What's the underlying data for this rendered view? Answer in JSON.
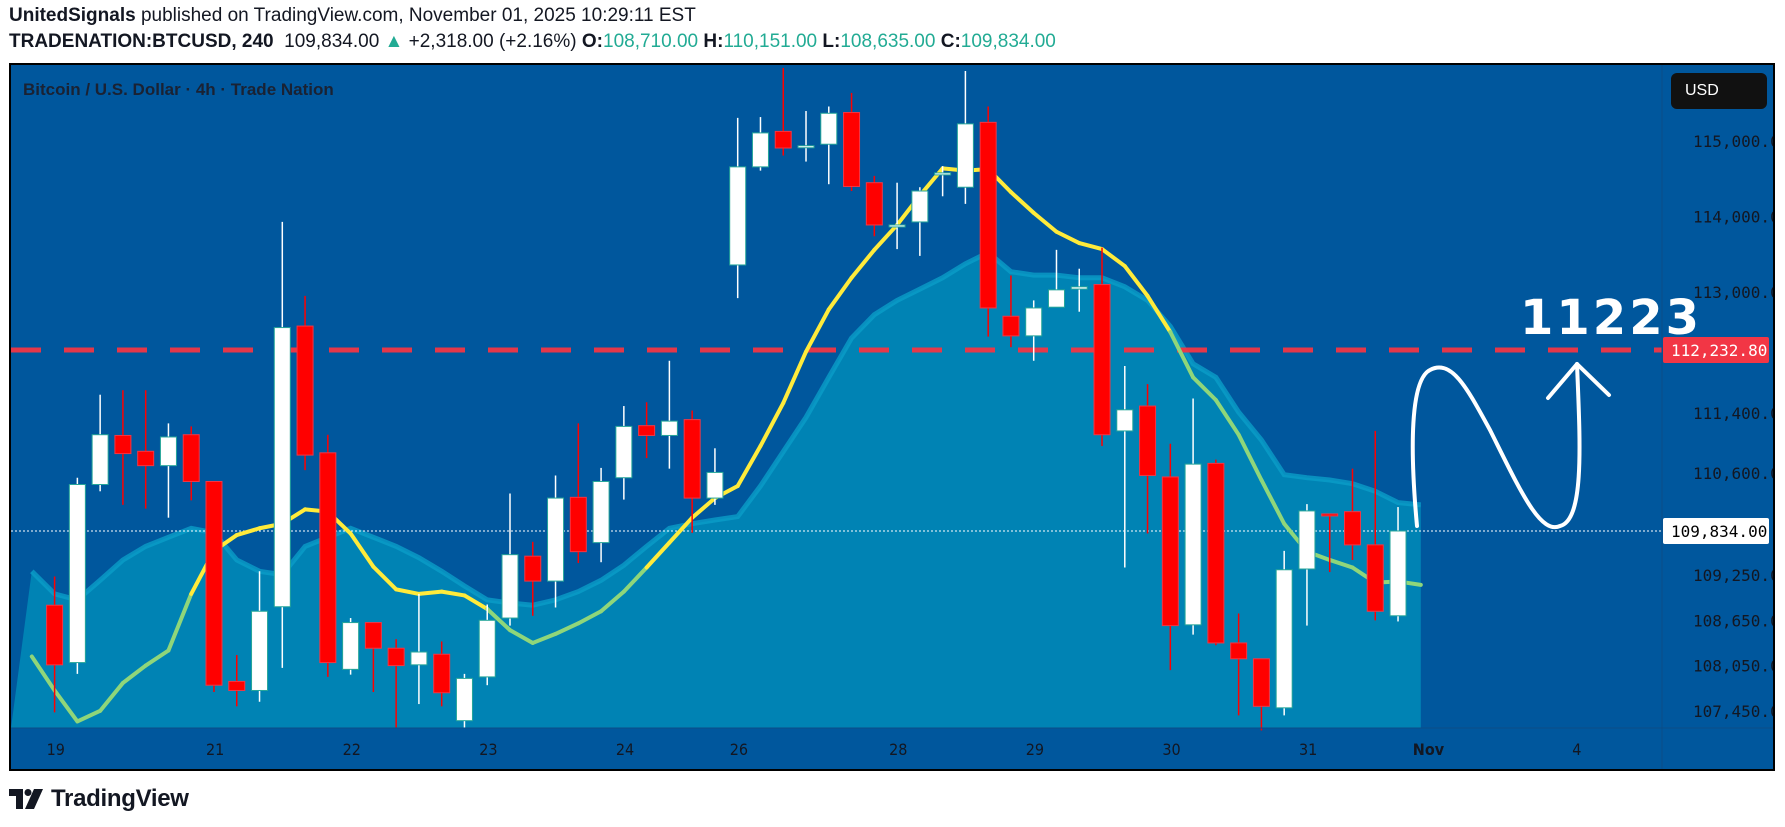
{
  "header": {
    "author": "UnitedSignals",
    "published_text": " published on TradingView.com, November 01, 2025 10:29:11 EST",
    "symbol": "TRADENATION:BTCUSD, 240",
    "last_price": "109,834.00",
    "change_arrow": "▲",
    "change": "+2,318.00 (+2.16%)",
    "o_label": "O:",
    "o_value": "108,710.00",
    "h_label": "H:",
    "h_value": "110,151.00",
    "l_label": "L:",
    "l_value": "108,635.00",
    "c_label": "C:",
    "c_value": "109,834.00"
  },
  "chart": {
    "legend_title": "Bitcoin / U.S. Dollar · 4h · Trade Nation",
    "currency_button": "USD",
    "annotation_text": "11223",
    "horizontal_line_label": "112,232.80",
    "last_price_label": "109,834.00"
  },
  "colors": {
    "background": "#00579d",
    "area_fill": "#0083b4",
    "area_line": "#0a9ec8",
    "ma_yellow": "#ffeb3b",
    "ma_green": "#8fd67a",
    "up_body": "#ffffff",
    "up_border": "#26a69a",
    "down_body": "#ff0000",
    "down_border": "#f23645",
    "hline": "#f23645",
    "axis_text": "#131722"
  },
  "footer": {
    "brand": "TradingView"
  },
  "chart_data": {
    "type": "candlestick",
    "title": "Bitcoin / U.S. Dollar · 4h · Trade Nation",
    "symbol": "TRADENATION:BTCUSD",
    "interval": "240",
    "ylabel": "USD",
    "ylim": [
      107000,
      116100
    ],
    "y_ticks": [
      115000,
      114000,
      113000,
      111400,
      110600,
      109250,
      108650,
      108050,
      107450
    ],
    "y_tick_labels": [
      "115,000.00",
      "114,000.00",
      "113,000.00",
      "111,400.00",
      "110,600.00",
      "109,250.00",
      "108,650.00",
      "108,050.00",
      "107,450.00"
    ],
    "x_ticks": [
      {
        "label": "19",
        "index": 0
      },
      {
        "label": "21",
        "index": 7
      },
      {
        "label": "22",
        "index": 13
      },
      {
        "label": "23",
        "index": 19
      },
      {
        "label": "24",
        "index": 25
      },
      {
        "label": "26",
        "index": 30
      },
      {
        "label": "28",
        "index": 37
      },
      {
        "label": "29",
        "index": 43
      },
      {
        "label": "30",
        "index": 49
      },
      {
        "label": "31",
        "index": 55
      },
      {
        "label": "Nov",
        "index": 60
      },
      {
        "label": "4",
        "index": 67
      }
    ],
    "horizontal_level": 112232.8,
    "last_price": 109834.0,
    "ohlc": [
      [
        108850,
        109230,
        107430,
        108060
      ],
      [
        108090,
        110540,
        107940,
        110450
      ],
      [
        110450,
        111640,
        110360,
        111110
      ],
      [
        111100,
        111700,
        110180,
        110860
      ],
      [
        110890,
        111700,
        110130,
        110700
      ],
      [
        110700,
        111260,
        110010,
        111080
      ],
      [
        111110,
        111220,
        110240,
        110490
      ],
      [
        110490,
        110490,
        107700,
        107790
      ],
      [
        107840,
        108190,
        107510,
        107720
      ],
      [
        107720,
        109300,
        107570,
        108770
      ],
      [
        108830,
        113930,
        108020,
        112530
      ],
      [
        112550,
        112950,
        110640,
        110840
      ],
      [
        110870,
        111110,
        107900,
        108090
      ],
      [
        108000,
        108680,
        107930,
        108620
      ],
      [
        108620,
        108620,
        107700,
        108280
      ],
      [
        108280,
        108400,
        107230,
        108050
      ],
      [
        108060,
        109000,
        107540,
        108230
      ],
      [
        108200,
        108370,
        107510,
        107690
      ],
      [
        107320,
        107940,
        107230,
        107880
      ],
      [
        107900,
        108860,
        107790,
        108650
      ],
      [
        108680,
        110330,
        108580,
        109520
      ],
      [
        109500,
        109690,
        108710,
        109170
      ],
      [
        109170,
        110570,
        108820,
        110270
      ],
      [
        110280,
        111260,
        109410,
        109560
      ],
      [
        109680,
        110670,
        109420,
        110490
      ],
      [
        110540,
        111490,
        110250,
        111220
      ],
      [
        111230,
        111540,
        110800,
        111100
      ],
      [
        111100,
        112090,
        110660,
        111290
      ],
      [
        111310,
        111430,
        109810,
        110270
      ],
      [
        110270,
        110930,
        110180,
        110610
      ],
      [
        113360,
        115310,
        112920,
        114660
      ],
      [
        114660,
        115320,
        114610,
        115110
      ],
      [
        115130,
        115970,
        114810,
        114910
      ],
      [
        114930,
        115400,
        114730,
        114940
      ],
      [
        114960,
        115460,
        114430,
        115370
      ],
      [
        115380,
        115640,
        114340,
        114400
      ],
      [
        114450,
        114540,
        113740,
        113890
      ],
      [
        113890,
        114450,
        113570,
        113890
      ],
      [
        113930,
        114390,
        113480,
        114340
      ],
      [
        114570,
        114670,
        114270,
        114580
      ],
      [
        114390,
        115930,
        114170,
        115230
      ],
      [
        115250,
        115460,
        112410,
        112790
      ],
      [
        112680,
        113220,
        112270,
        112420
      ],
      [
        112420,
        112890,
        112090,
        112790
      ],
      [
        112800,
        113560,
        112800,
        113030
      ],
      [
        113040,
        113310,
        112740,
        113070
      ],
      [
        113100,
        113590,
        110960,
        111110
      ],
      [
        111160,
        112020,
        109350,
        111440
      ],
      [
        111490,
        111780,
        109800,
        110570
      ],
      [
        110550,
        110990,
        107990,
        108580
      ],
      [
        108590,
        111590,
        108460,
        110720
      ],
      [
        110730,
        110780,
        108320,
        108350
      ],
      [
        108350,
        108740,
        107390,
        108140
      ],
      [
        108140,
        108140,
        107190,
        107510
      ],
      [
        107490,
        109570,
        107390,
        109320
      ],
      [
        109330,
        110190,
        108580,
        110100
      ],
      [
        110060,
        110060,
        109290,
        110040
      ],
      [
        110090,
        110660,
        109450,
        109650
      ],
      [
        109650,
        111160,
        108650,
        108770
      ],
      [
        108710,
        110151,
        108635,
        109834
      ]
    ],
    "series": [
      {
        "name": "Moving average (line)",
        "values": [
          108170,
          107720,
          107310,
          107450,
          107820,
          108050,
          108250,
          109000,
          109570,
          109780,
          109870,
          109930,
          110120,
          110090,
          109800,
          109360,
          109060,
          109000,
          109030,
          108980,
          108800,
          108520,
          108350,
          108470,
          108610,
          108770,
          109030,
          109350,
          109680,
          110010,
          110270,
          110430,
          110960,
          111530,
          112210,
          112770,
          113190,
          113560,
          113890,
          114280,
          114640,
          114610,
          114630,
          114325,
          114050,
          113800,
          113650,
          113570,
          113345,
          112950,
          112470,
          111870,
          111570,
          111110,
          110510,
          109930,
          109560,
          109450,
          109350,
          109150,
          109165,
          109120
        ],
        "start_index": -1,
        "segment_colors": "green 0-7, yellow 7-20, green 20-27, yellow 27-50, green 50-61"
      },
      {
        "name": "Moving average (area)",
        "values": [
          109300,
          109000,
          108920,
          109180,
          109450,
          109630,
          109750,
          109870,
          109810,
          109450,
          109300,
          109255,
          109630,
          109750,
          109870,
          109750,
          109630,
          109480,
          109300,
          109105,
          108920,
          108880,
          108850,
          108920,
          109030,
          109180,
          109380,
          109630,
          109870,
          109930,
          109980,
          110025,
          110430,
          110885,
          111340,
          111870,
          112390,
          112700,
          112890,
          113040,
          113190,
          113375,
          113525,
          113270,
          113225,
          113225,
          113190,
          113190,
          113070,
          112890,
          112545,
          112050,
          111870,
          111410,
          111040,
          110580,
          110540,
          110510,
          110460,
          110360,
          110210,
          110180
        ],
        "start_index": -1
      }
    ],
    "annotations": [
      {
        "type": "text",
        "text": "11223"
      },
      {
        "type": "hline",
        "price": 112232.8,
        "style": "dashed",
        "color": "#f23645"
      },
      {
        "type": "arrow-path",
        "description": "hand-drawn wave up, down, then up arrow toward 112,232.80"
      }
    ]
  }
}
